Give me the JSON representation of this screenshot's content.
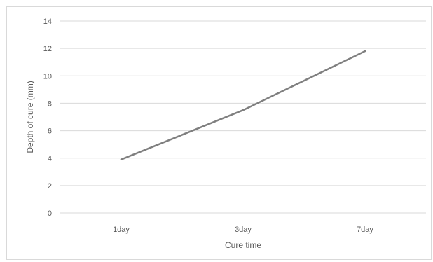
{
  "chart_data": {
    "type": "line",
    "categories": [
      "1day",
      "3day",
      "7day"
    ],
    "series": [
      {
        "values": [
          3.9,
          7.5,
          11.8
        ]
      }
    ],
    "xlabel": "Cure time",
    "ylabel": "Depth of cure (mm)",
    "ylim": [
      0,
      14
    ],
    "yticks": [
      "0",
      "2",
      "4",
      "6",
      "8",
      "10",
      "12",
      "14"
    ],
    "grid": "horizontal",
    "legend": "none",
    "colors": {
      "line": "#7f7f7f",
      "grid": "#d9d9d9",
      "text": "#595959"
    }
  }
}
